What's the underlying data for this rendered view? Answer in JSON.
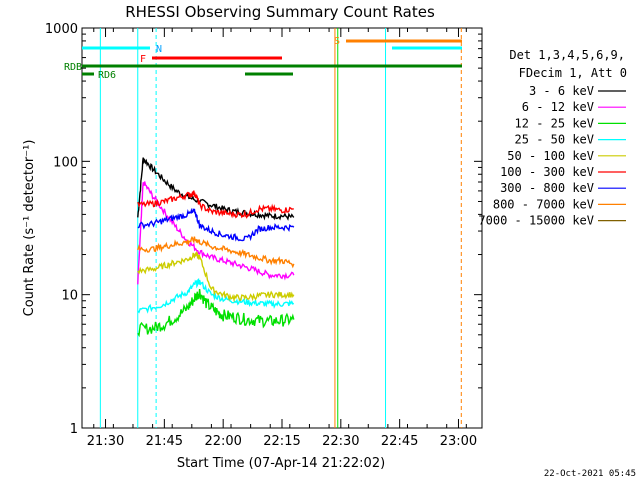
{
  "chart_data": {
    "type": "line",
    "title": "RHESSI Observing Summary Count Rates",
    "xlabel": "Start Time (07-Apr-14 21:22:02)",
    "ylabel": "Count Rate (s⁻¹ detector⁻¹)",
    "yscale": "log",
    "ylim": [
      1,
      1000
    ],
    "xlim_minutes": [
      21.4,
      23.1
    ],
    "x_ticks": [
      "21:30",
      "21:45",
      "22:00",
      "22:15",
      "22:30",
      "22:45",
      "23:00"
    ],
    "y_ticks": [
      "1",
      "10",
      "100",
      "1000"
    ],
    "legend_header": [
      "Det 1,3,4,5,6,9,",
      "FDecim 1, Att 0"
    ],
    "timestamp": "22-Oct-2021 05:45",
    "flags": {
      "N": "N",
      "F": "F",
      "S": "S",
      "RDB": "RDB",
      "RD6": "RD6"
    },
    "series": [
      {
        "name": "3 - 6 keV",
        "color": "#000000",
        "points": [
          [
            21.637,
            38
          ],
          [
            21.66,
            105
          ],
          [
            21.7,
            88
          ],
          [
            21.75,
            72
          ],
          [
            21.8,
            60
          ],
          [
            21.85,
            54
          ],
          [
            21.9,
            50
          ],
          [
            21.95,
            47
          ],
          [
            22.0,
            44
          ],
          [
            22.05,
            42
          ],
          [
            22.1,
            41
          ],
          [
            22.15,
            40
          ],
          [
            22.2,
            39
          ],
          [
            22.25,
            39
          ],
          [
            22.3,
            38
          ]
        ]
      },
      {
        "name": "6 - 12 keV",
        "color": "#ff00ff",
        "points": [
          [
            21.637,
            12
          ],
          [
            21.66,
            70
          ],
          [
            21.7,
            55
          ],
          [
            21.75,
            42
          ],
          [
            21.8,
            32
          ],
          [
            21.85,
            25
          ],
          [
            21.9,
            21
          ],
          [
            21.95,
            19
          ],
          [
            22.0,
            18
          ],
          [
            22.05,
            17
          ],
          [
            22.1,
            16
          ],
          [
            22.15,
            15
          ],
          [
            22.2,
            14
          ],
          [
            22.25,
            14
          ],
          [
            22.3,
            14
          ]
        ]
      },
      {
        "name": "12 - 25 keV",
        "color": "#00e000",
        "points": [
          [
            21.637,
            5.5
          ],
          [
            21.7,
            5.6
          ],
          [
            21.75,
            6.0
          ],
          [
            21.8,
            6.8
          ],
          [
            21.85,
            8.0
          ],
          [
            21.88,
            9.5
          ],
          [
            21.9,
            10.5
          ],
          [
            21.93,
            8.5
          ],
          [
            21.97,
            7.5
          ],
          [
            22.0,
            7.0
          ],
          [
            22.05,
            6.8
          ],
          [
            22.1,
            6.5
          ],
          [
            22.15,
            6.4
          ],
          [
            22.2,
            6.3
          ],
          [
            22.25,
            6.4
          ],
          [
            22.3,
            6.5
          ]
        ]
      },
      {
        "name": "25 - 50 keV",
        "color": "#00ffff",
        "points": [
          [
            21.637,
            7.5
          ],
          [
            21.7,
            8.0
          ],
          [
            21.75,
            8.5
          ],
          [
            21.8,
            9.5
          ],
          [
            21.85,
            10.5
          ],
          [
            21.88,
            12
          ],
          [
            21.9,
            12.5
          ],
          [
            21.95,
            10
          ],
          [
            22.0,
            9.3
          ],
          [
            22.05,
            9.0
          ],
          [
            22.1,
            8.8
          ],
          [
            22.15,
            8.6
          ],
          [
            22.2,
            8.5
          ],
          [
            22.25,
            8.5
          ],
          [
            22.3,
            8.6
          ]
        ]
      },
      {
        "name": "50 - 100 keV",
        "color": "#cccc00",
        "points": [
          [
            21.637,
            15
          ],
          [
            21.7,
            15.5
          ],
          [
            21.75,
            16.5
          ],
          [
            21.8,
            17.5
          ],
          [
            21.85,
            18.5
          ],
          [
            21.88,
            20
          ],
          [
            21.9,
            19
          ],
          [
            21.95,
            11
          ],
          [
            22.0,
            10
          ],
          [
            22.05,
            9.5
          ],
          [
            22.1,
            9.5
          ],
          [
            22.15,
            9.8
          ],
          [
            22.2,
            10
          ],
          [
            22.25,
            10
          ],
          [
            22.3,
            10
          ]
        ]
      },
      {
        "name": "100 - 300 keV",
        "color": "#ff0000",
        "points": [
          [
            21.637,
            47
          ],
          [
            21.7,
            48
          ],
          [
            21.75,
            50
          ],
          [
            21.8,
            53
          ],
          [
            21.85,
            56
          ],
          [
            21.88,
            58
          ],
          [
            21.9,
            47
          ],
          [
            21.95,
            42
          ],
          [
            22.0,
            41
          ],
          [
            22.05,
            40
          ],
          [
            22.1,
            40
          ],
          [
            22.15,
            44
          ],
          [
            22.2,
            44
          ],
          [
            22.25,
            43
          ],
          [
            22.3,
            44
          ]
        ]
      },
      {
        "name": "300 - 800 keV",
        "color": "#0000ff",
        "points": [
          [
            21.637,
            33
          ],
          [
            21.7,
            34
          ],
          [
            21.75,
            36
          ],
          [
            21.8,
            38
          ],
          [
            21.85,
            40
          ],
          [
            21.88,
            42
          ],
          [
            21.9,
            33
          ],
          [
            21.95,
            30
          ],
          [
            22.0,
            28
          ],
          [
            22.05,
            27
          ],
          [
            22.1,
            26
          ],
          [
            22.15,
            31
          ],
          [
            22.2,
            32
          ],
          [
            22.25,
            32
          ],
          [
            22.3,
            32
          ]
        ]
      },
      {
        "name": "800 - 7000 keV",
        "color": "#ff8000",
        "points": [
          [
            21.637,
            22
          ],
          [
            21.7,
            22
          ],
          [
            21.75,
            23
          ],
          [
            21.8,
            24
          ],
          [
            21.85,
            25
          ],
          [
            21.88,
            26
          ],
          [
            21.9,
            25
          ],
          [
            21.95,
            23
          ],
          [
            22.0,
            22
          ],
          [
            22.05,
            21
          ],
          [
            22.1,
            20
          ],
          [
            22.15,
            19
          ],
          [
            22.2,
            18
          ],
          [
            22.25,
            18
          ],
          [
            22.3,
            17
          ]
        ]
      },
      {
        "name": "7000 - 15000 keV",
        "color": "#806000",
        "points": []
      }
    ],
    "verticals": [
      {
        "x": 21.478,
        "color": "#00ffff",
        "dashed": false
      },
      {
        "x": 21.637,
        "color": "#00ffff",
        "dashed": false
      },
      {
        "x": 21.715,
        "color": "#00ffff",
        "dashed": true
      },
      {
        "x": 22.475,
        "color": "#ff8000",
        "dashed": false
      },
      {
        "x": 22.487,
        "color": "#00e000",
        "dashed": false
      },
      {
        "x": 22.69,
        "color": "#00ffff",
        "dashed": false
      },
      {
        "x": 23.012,
        "color": "#ff8000",
        "dashed": true
      }
    ]
  }
}
